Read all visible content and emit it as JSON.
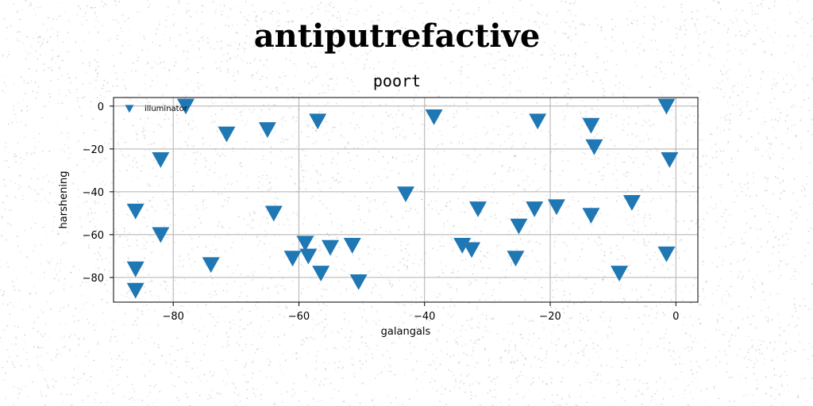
{
  "chart_data": {
    "type": "scatter",
    "suptitle": "antiputrefactive",
    "title": "poort",
    "xlabel": "galangals",
    "ylabel": "harshening",
    "xlim": [
      -89.5,
      3.5
    ],
    "ylim": [
      -91.5,
      4
    ],
    "xticks": [
      -80,
      -60,
      -40,
      -20,
      0
    ],
    "yticks": [
      0,
      -20,
      -40,
      -60,
      -80
    ],
    "grid": true,
    "legend_placement": "top-left",
    "marker": "triangle-down",
    "series": [
      {
        "name": "illuminator",
        "color": "#1f77b4",
        "points": [
          [
            -78,
            0
          ],
          [
            -71.5,
            -13
          ],
          [
            -65,
            -11
          ],
          [
            -57,
            -7
          ],
          [
            -82,
            -25
          ],
          [
            -86,
            -49
          ],
          [
            -82,
            -60
          ],
          [
            -86,
            -76
          ],
          [
            -86,
            -86
          ],
          [
            -74,
            -74
          ],
          [
            -64,
            -50
          ],
          [
            -61,
            -71
          ],
          [
            -59,
            -64
          ],
          [
            -58.5,
            -70
          ],
          [
            -56.5,
            -78
          ],
          [
            -55,
            -66
          ],
          [
            -51.5,
            -65
          ],
          [
            -50.5,
            -82
          ],
          [
            -43,
            -41
          ],
          [
            -38.5,
            -5
          ],
          [
            -34,
            -65
          ],
          [
            -32.5,
            -67
          ],
          [
            -31.5,
            -48
          ],
          [
            -25.5,
            -71
          ],
          [
            -25,
            -56
          ],
          [
            -22.5,
            -48
          ],
          [
            -22,
            -7
          ],
          [
            -19,
            -47
          ],
          [
            -13.5,
            -9
          ],
          [
            -13.5,
            -51
          ],
          [
            -13,
            -19
          ],
          [
            -9,
            -78
          ],
          [
            -7,
            -45
          ],
          [
            -1.5,
            0
          ],
          [
            -1.5,
            -69
          ],
          [
            -1,
            -25
          ]
        ]
      }
    ]
  }
}
